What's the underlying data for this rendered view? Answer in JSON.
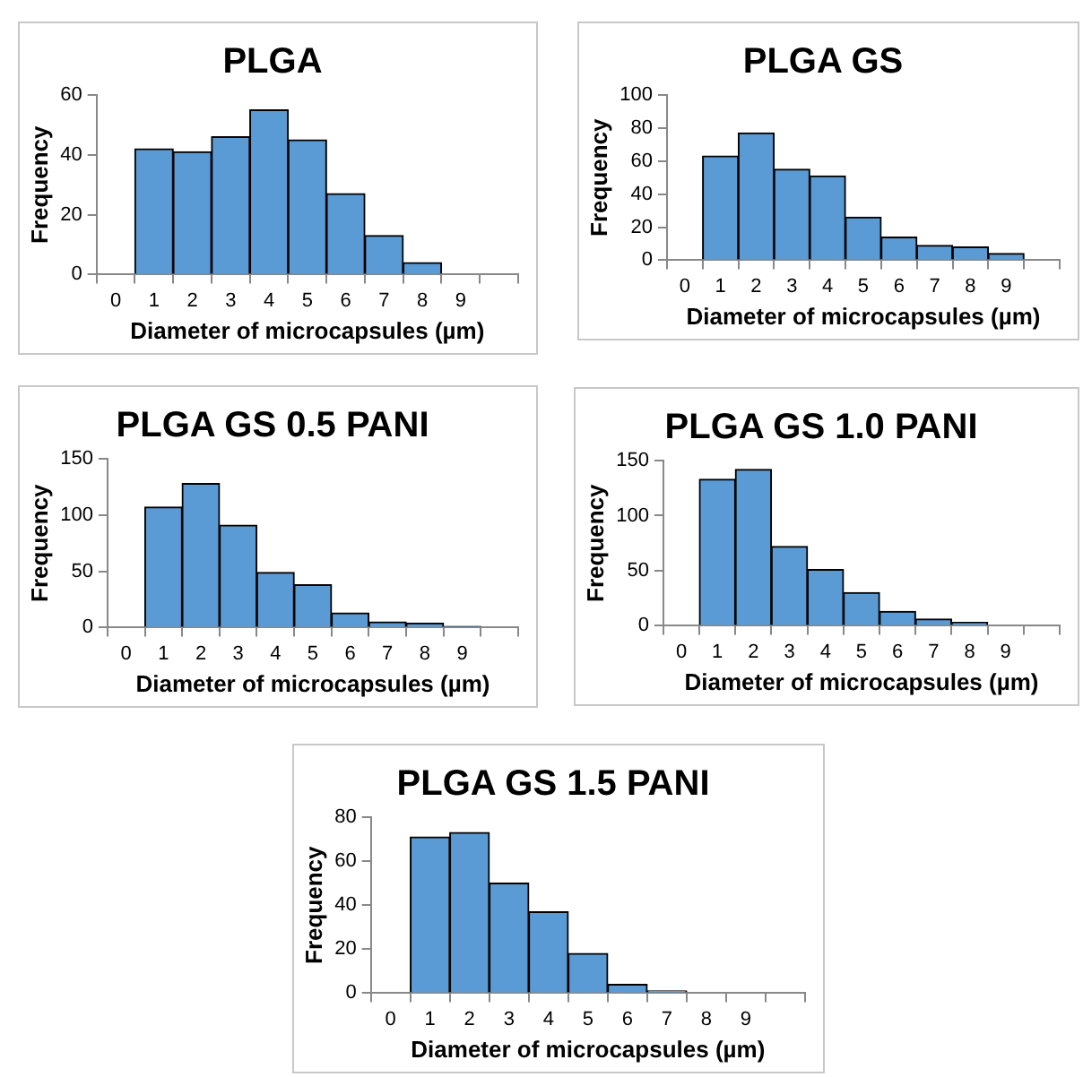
{
  "chart_data": [
    {
      "type": "bar",
      "title": "PLGA",
      "xlabel": "Diameter of microcapsules (µm)",
      "ylabel": "Frequency",
      "categories": [
        "0",
        "1",
        "2",
        "3",
        "4",
        "5",
        "6",
        "7",
        "8",
        "9",
        null
      ],
      "values": [
        0,
        42,
        41,
        46,
        55,
        45,
        27,
        13,
        4,
        0,
        0
      ],
      "color": "#5b9bd5",
      "ylim": [
        0,
        60
      ],
      "yticks": [
        0,
        20,
        40,
        60
      ],
      "grid": false,
      "legend": false
    },
    {
      "type": "bar",
      "title": "PLGA GS",
      "xlabel": "Diameter of microcapsules (µm)",
      "ylabel": "Frequency",
      "categories": [
        "0",
        "1",
        "2",
        "3",
        "4",
        "5",
        "6",
        "7",
        "8",
        "9",
        null
      ],
      "values": [
        0,
        63,
        77,
        55,
        51,
        26,
        14,
        9,
        8,
        4,
        0
      ],
      "color": "#5b9bd5",
      "ylim": [
        0,
        100
      ],
      "yticks": [
        0,
        20,
        40,
        60,
        80,
        100
      ],
      "grid": false,
      "legend": false
    },
    {
      "type": "bar",
      "title": "PLGA GS 0.5 PANI",
      "xlabel": "Diameter of microcapsules (µm)",
      "ylabel": "Frequency",
      "categories": [
        "0",
        "1",
        "2",
        "3",
        "4",
        "5",
        "6",
        "7",
        "8",
        "9",
        null
      ],
      "values": [
        0,
        107,
        128,
        91,
        49,
        38,
        13,
        5,
        4,
        1,
        0
      ],
      "color": "#5b9bd5",
      "ylim": [
        0,
        150
      ],
      "yticks": [
        0,
        50,
        100,
        150
      ],
      "grid": false,
      "legend": false
    },
    {
      "type": "bar",
      "title": "PLGA GS 1.0 PANI",
      "xlabel": "Diameter of microcapsules (µm)",
      "ylabel": "Frequency",
      "categories": [
        "0",
        "1",
        "2",
        "3",
        "4",
        "5",
        "6",
        "7",
        "8",
        "9",
        null
      ],
      "values": [
        0,
        133,
        142,
        72,
        51,
        30,
        13,
        6,
        3,
        0,
        0
      ],
      "color": "#5b9bd5",
      "ylim": [
        0,
        150
      ],
      "yticks": [
        0,
        50,
        100,
        150
      ],
      "grid": false,
      "legend": false
    },
    {
      "type": "bar",
      "title": "PLGA GS 1.5 PANI",
      "xlabel": "Diameter of microcapsules (µm)",
      "ylabel": "Frequency",
      "categories": [
        "0",
        "1",
        "2",
        "3",
        "4",
        "5",
        "6",
        "7",
        "8",
        "9",
        null
      ],
      "values": [
        0,
        71,
        73,
        50,
        37,
        18,
        4,
        1,
        0,
        0,
        0
      ],
      "color": "#5b9bd5",
      "ylim": [
        0,
        80
      ],
      "yticks": [
        0,
        20,
        40,
        60,
        80
      ],
      "grid": false,
      "legend": false
    }
  ]
}
